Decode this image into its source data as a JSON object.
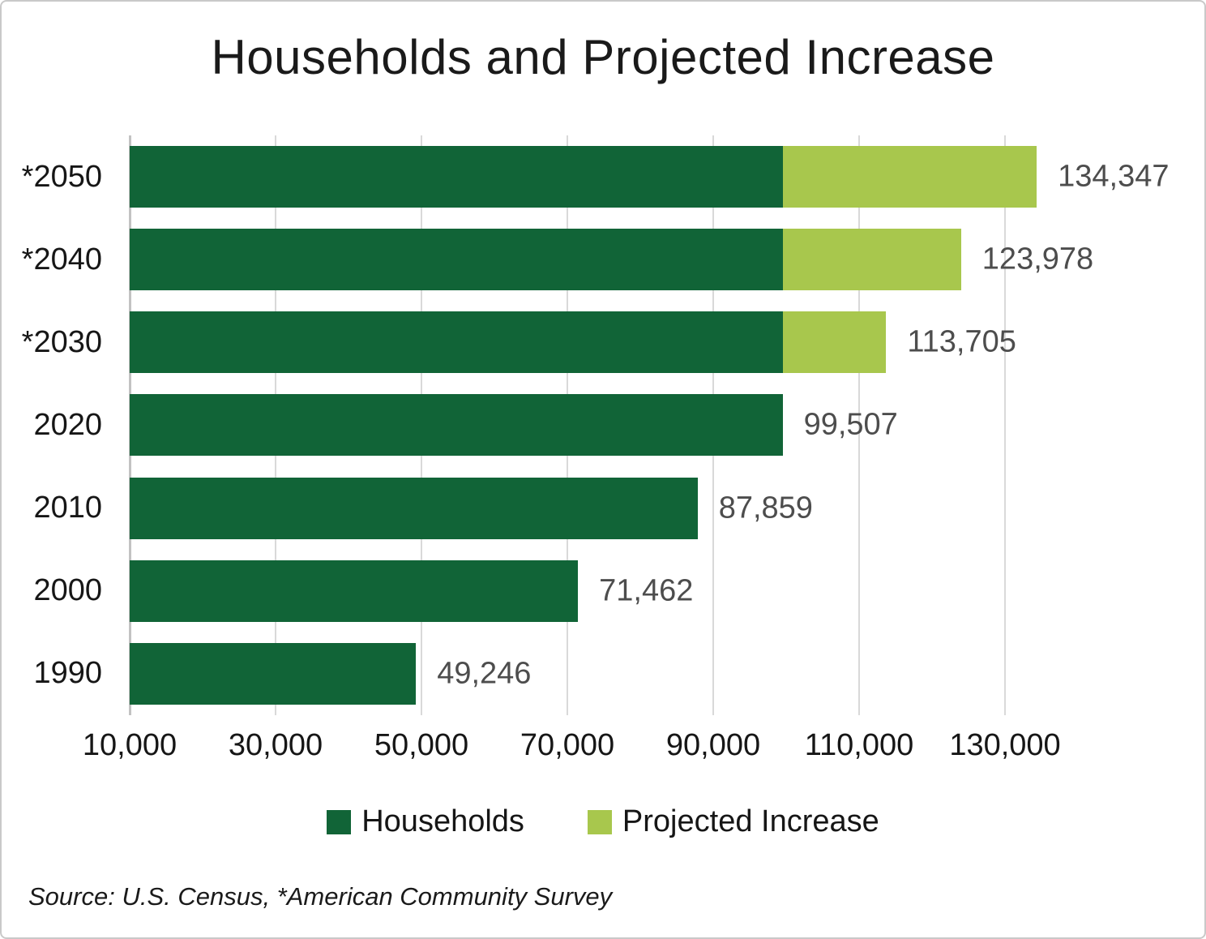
{
  "title": "Households and Projected Increase",
  "source_note": "Source: U.S. Census, *American Community Survey",
  "colors": {
    "households": "#116437",
    "projected_increase": "#A8C74D",
    "gridline": "#D9D9D9",
    "axis_line": "#C2C2C2",
    "data_label": "#4D4D4D",
    "text": "#1A1A1A",
    "frame_border": "#C9C9C9"
  },
  "chart_data": {
    "type": "bar",
    "orientation": "horizontal",
    "title": "Households and Projected Increase",
    "categories": [
      "*2050",
      "*2040",
      "*2030",
      "2020",
      "2010",
      "2000",
      "1990"
    ],
    "series": [
      {
        "name": "Households",
        "color": "#116437",
        "values": [
          99507,
          99507,
          99507,
          99507,
          87859,
          71462,
          49246
        ]
      },
      {
        "name": "Projected Increase",
        "color": "#A8C74D",
        "values": [
          34840,
          24471,
          14198,
          0,
          0,
          0,
          0
        ]
      }
    ],
    "bar_totals": [
      134347,
      123978,
      113705,
      99507,
      87859,
      71462,
      49246
    ],
    "bar_total_labels": [
      "134,347",
      "123,978",
      "113,705",
      "99,507",
      "87,859",
      "71,462",
      "49,246"
    ],
    "xaxis": {
      "min": 10000,
      "max": 140000,
      "tick_interval": 20000,
      "ticks": [
        10000,
        30000,
        50000,
        70000,
        90000,
        110000,
        130000
      ],
      "tick_labels": [
        "10,000",
        "30,000",
        "50,000",
        "70,000",
        "90,000",
        "110,000",
        "130,000"
      ]
    },
    "grid": true,
    "legend": {
      "position": "bottom",
      "entries": [
        {
          "label": "Households",
          "color": "#116437"
        },
        {
          "label": "Projected Increase",
          "color": "#A8C74D"
        }
      ]
    },
    "source_note": "Source: U.S. Census, *American Community Survey"
  }
}
